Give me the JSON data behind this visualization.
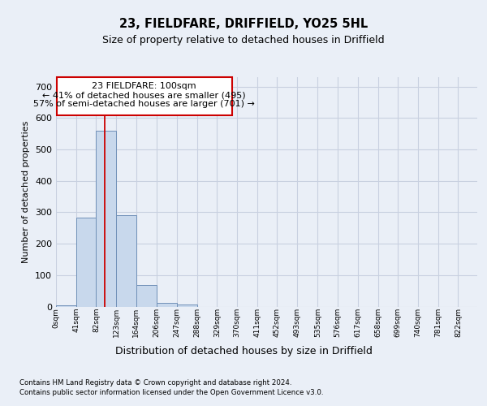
{
  "title1": "23, FIELDFARE, DRIFFIELD, YO25 5HL",
  "title2": "Size of property relative to detached houses in Driffield",
  "xlabel": "Distribution of detached houses by size in Driffield",
  "ylabel": "Number of detached properties",
  "footnote1": "Contains HM Land Registry data © Crown copyright and database right 2024.",
  "footnote2": "Contains public sector information licensed under the Open Government Licence v3.0.",
  "bar_color": "#c8d8ec",
  "bar_edge_color": "#7090b8",
  "grid_color": "#c8d0e0",
  "annotation_box_color": "#cc0000",
  "annotation_line1": "23 FIELDFARE: 100sqm",
  "annotation_line2": "← 41% of detached houses are smaller (495)",
  "annotation_line3": "57% of semi-detached houses are larger (701) →",
  "subject_line_color": "#cc0000",
  "subject_x": 100,
  "bin_width": 41,
  "bin_starts": [
    0,
    41,
    82,
    123,
    164,
    206,
    247,
    288,
    329,
    370,
    411,
    452,
    493,
    535,
    576,
    617,
    658,
    699,
    740,
    781
  ],
  "bar_heights": [
    5,
    283,
    560,
    291,
    68,
    12,
    7,
    0,
    0,
    0,
    0,
    0,
    0,
    0,
    0,
    0,
    0,
    0,
    0,
    0
  ],
  "tick_labels": [
    "0sqm",
    "41sqm",
    "82sqm",
    "123sqm",
    "164sqm",
    "206sqm",
    "247sqm",
    "288sqm",
    "329sqm",
    "370sqm",
    "411sqm",
    "452sqm",
    "493sqm",
    "535sqm",
    "576sqm",
    "617sqm",
    "658sqm",
    "699sqm",
    "740sqm",
    "781sqm",
    "822sqm"
  ],
  "ylim": [
    0,
    730
  ],
  "xlim_min": 0,
  "xlim_max": 861,
  "background_color": "#eaeff7",
  "plot_bg_color": "#eaeff7",
  "ann_x0": 1,
  "ann_x1": 360,
  "ann_y0": 608,
  "ann_y1": 730
}
